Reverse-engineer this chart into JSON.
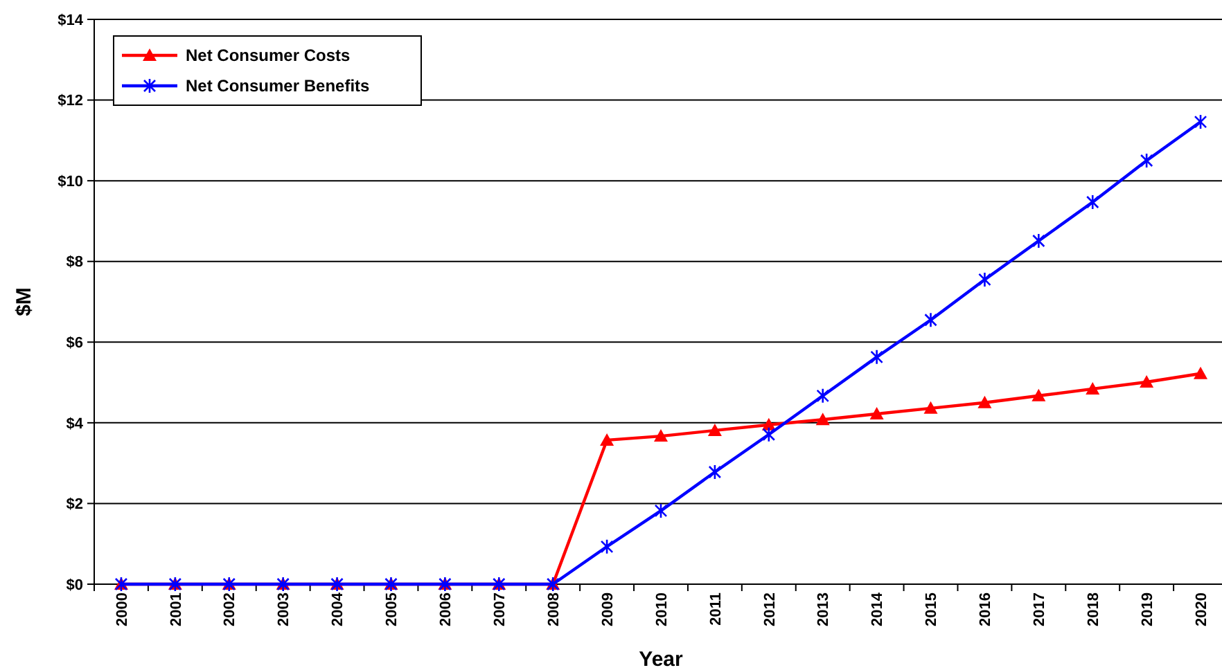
{
  "chart_data": {
    "type": "line",
    "xlabel": "Year",
    "ylabel": "$M",
    "categories": [
      "2000",
      "2001",
      "2002",
      "2003",
      "2004",
      "2005",
      "2006",
      "2007",
      "2008",
      "2009",
      "2010",
      "2011",
      "2012",
      "2013",
      "2014",
      "2015",
      "2016",
      "2017",
      "2018",
      "2019",
      "2020"
    ],
    "series": [
      {
        "name": "Net Consumer Costs",
        "color": "#ff0000",
        "marker": "triangle",
        "values": [
          0,
          0,
          0,
          0,
          0,
          0,
          0,
          0,
          0,
          3.57,
          3.67,
          3.81,
          3.95,
          4.08,
          4.22,
          4.36,
          4.5,
          4.67,
          4.84,
          5.01,
          5.22
        ]
      },
      {
        "name": "Net Consumer Benefits",
        "color": "#0000ff",
        "marker": "cross",
        "values": [
          0,
          0,
          0,
          0,
          0,
          0,
          0,
          0,
          0,
          0.93,
          1.82,
          2.78,
          3.71,
          4.67,
          5.63,
          6.55,
          7.55,
          8.51,
          9.47,
          10.5,
          11.46
        ]
      }
    ],
    "ylim": [
      0,
      14
    ],
    "yticks": [
      {
        "value": 0,
        "label": "$0"
      },
      {
        "value": 2,
        "label": "$2"
      },
      {
        "value": 4,
        "label": "$4"
      },
      {
        "value": 6,
        "label": "$6"
      },
      {
        "value": 8,
        "label": "$8"
      },
      {
        "value": 10,
        "label": "$10"
      },
      {
        "value": 12,
        "label": "$12"
      },
      {
        "value": 14,
        "label": "$14"
      }
    ],
    "grid": "y",
    "legend": "top left",
    "line_style": "solid"
  }
}
